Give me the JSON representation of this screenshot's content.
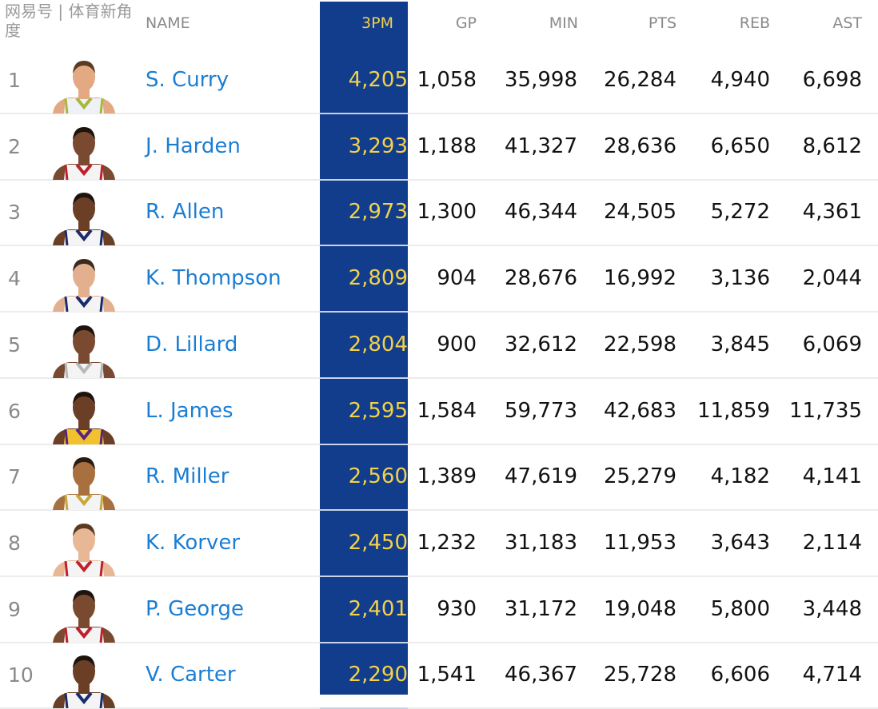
{
  "headers": {
    "name": "NAME",
    "tpm": "3PM",
    "gp": "GP",
    "min": "MIN",
    "pts": "PTS",
    "reb": "REB",
    "ast": "AST"
  },
  "colors": {
    "highlight": "#123c8c",
    "highlight_text": "#f2d24a",
    "name_link": "#1b7ed3"
  },
  "rows": [
    {
      "rank": "1",
      "name": "S. Curry",
      "tpm": "4,205",
      "gp": "1,058",
      "min": "35,998",
      "pts": "26,284",
      "reb": "4,940",
      "ast": "6,698",
      "skin": "#e2a982",
      "hair": "#5a3a22",
      "jersey": "#eef2f7",
      "trim": "#a8b83a"
    },
    {
      "rank": "2",
      "name": "J. Harden",
      "tpm": "3,293",
      "gp": "1,188",
      "min": "41,327",
      "pts": "28,636",
      "reb": "6,650",
      "ast": "8,612",
      "skin": "#7a4a30",
      "hair": "#1e140e",
      "jersey": "#f4f4f4",
      "trim": "#c0202b"
    },
    {
      "rank": "3",
      "name": "R. Allen",
      "tpm": "2,973",
      "gp": "1,300",
      "min": "46,344",
      "pts": "24,505",
      "reb": "5,272",
      "ast": "4,361",
      "skin": "#6b3f26",
      "hair": "#1e140e",
      "jersey": "#f4f4f4",
      "trim": "#1b2b6b"
    },
    {
      "rank": "4",
      "name": "K. Thompson",
      "tpm": "2,809",
      "gp": "904",
      "min": "28,676",
      "pts": "16,992",
      "reb": "3,136",
      "ast": "2,044",
      "skin": "#e2b08e",
      "hair": "#3b2a1e",
      "jersey": "#f4f4f4",
      "trim": "#1b2b6b"
    },
    {
      "rank": "5",
      "name": "D. Lillard",
      "tpm": "2,804",
      "gp": "900",
      "min": "32,612",
      "pts": "22,598",
      "reb": "3,845",
      "ast": "6,069",
      "skin": "#7a4a30",
      "hair": "#1e140e",
      "jersey": "#f4f4f4",
      "trim": "#b8b8b8"
    },
    {
      "rank": "6",
      "name": "L. James",
      "tpm": "2,595",
      "gp": "1,584",
      "min": "59,773",
      "pts": "42,683",
      "reb": "11,859",
      "ast": "11,735",
      "skin": "#6b3f26",
      "hair": "#1e140e",
      "jersey": "#f2c12e",
      "trim": "#552583"
    },
    {
      "rank": "7",
      "name": "R. Miller",
      "tpm": "2,560",
      "gp": "1,389",
      "min": "47,619",
      "pts": "25,279",
      "reb": "4,182",
      "ast": "4,141",
      "skin": "#a8703f",
      "hair": "#2a1c12",
      "jersey": "#f4f4f4",
      "trim": "#c8a838"
    },
    {
      "rank": "8",
      "name": "K. Korver",
      "tpm": "2,450",
      "gp": "1,232",
      "min": "31,183",
      "pts": "11,953",
      "reb": "3,643",
      "ast": "2,114",
      "skin": "#e8b896",
      "hair": "#5a3a22",
      "jersey": "#f4f4f4",
      "trim": "#c0202b"
    },
    {
      "rank": "9",
      "name": "P. George",
      "tpm": "2,401",
      "gp": "930",
      "min": "31,172",
      "pts": "19,048",
      "reb": "5,800",
      "ast": "3,448",
      "skin": "#7a4a30",
      "hair": "#1e140e",
      "jersey": "#f4f4f4",
      "trim": "#c0202b"
    },
    {
      "rank": "10",
      "name": "V. Carter",
      "tpm": "2,290",
      "gp": "1,541",
      "min": "46,367",
      "pts": "25,728",
      "reb": "6,606",
      "ast": "4,714",
      "skin": "#6b3f26",
      "hair": "#1e140e",
      "jersey": "#f4f4f4",
      "trim": "#1b2b6b"
    }
  ],
  "watermark": "网易号 | 体育新角度"
}
